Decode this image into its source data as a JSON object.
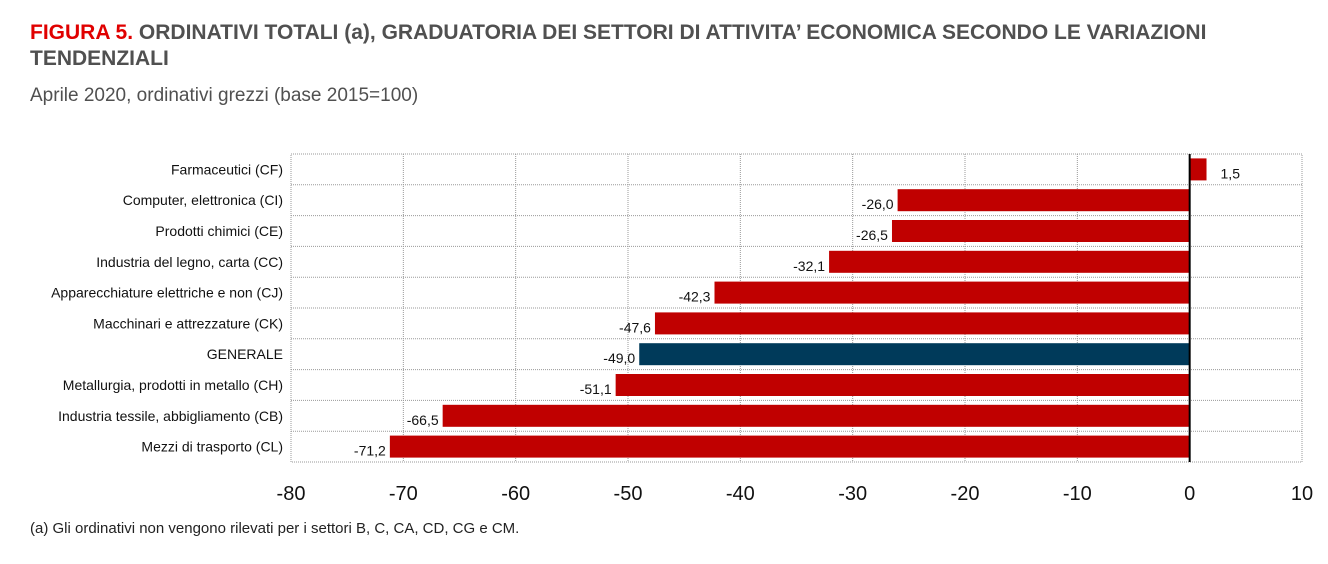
{
  "header": {
    "figure_label": "FIGURA 5.",
    "title": "ORDINATIVI TOTALI (a), GRADUATORIA DEI SETTORI DI ATTIVITA’ ECONOMICA SECONDO LE VARIAZIONI TENDENZIALI",
    "subtitle": "Aprile 2020, ordinativi grezzi (base 2015=100)"
  },
  "footnote": "(a) Gli ordinativi non vengono rilevati per i settori B, C, CA, CD, CG e CM.",
  "colors": {
    "bar": "#c00000",
    "highlight": "#003a5a",
    "grid": "#9a9a9a",
    "zero_line": "#000000"
  },
  "chart_data": {
    "type": "bar",
    "orientation": "horizontal",
    "categories": [
      "Farmaceutici (CF)",
      "Computer, elettronica (CI)",
      "Prodotti chimici (CE)",
      "Industria del legno, carta (CC)",
      "Apparecchiature elettriche e non (CJ)",
      "Macchinari e attrezzature (CK)",
      "GENERALE",
      "Metallurgia, prodotti in metallo (CH)",
      "Industria tessile, abbigliamento (CB)",
      "Mezzi di trasporto (CL)"
    ],
    "values": [
      1.5,
      -26.0,
      -26.5,
      -32.1,
      -42.3,
      -47.6,
      -49.0,
      -51.1,
      -66.5,
      -71.2
    ],
    "value_labels": [
      "1,5",
      "-26,0",
      "-26,5",
      "-32,1",
      "-42,3",
      "-47,6",
      "-49,0",
      "-51,1",
      "-66,5",
      "-71,2"
    ],
    "highlight_category": "GENERALE",
    "xlim": [
      -80,
      10
    ],
    "x_ticks": [
      -80,
      -70,
      -60,
      -50,
      -40,
      -30,
      -20,
      -10,
      0,
      10
    ],
    "grid": true
  }
}
